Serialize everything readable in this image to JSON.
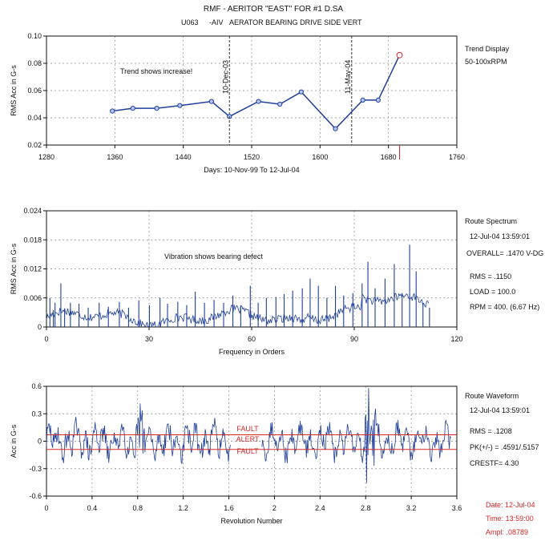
{
  "page": {
    "header_line1": "RMF  - AERITOR \"EAST\" FOR #1 D.SA",
    "header_line2a": "U063",
    "header_line2b": "-AIV",
    "header_line2c": "AERATOR BEARING DRIVE SIDE VERT"
  },
  "chart_data": [
    {
      "type": "line",
      "panel": "trend",
      "ylabel": "RMS Acc in G-s",
      "xlabel": "Days:  10-Nov-99  To  12-Jul-04",
      "xlim": [
        1280,
        1760
      ],
      "ylim": [
        0.02,
        0.1
      ],
      "x_ticks": [
        1280,
        1360,
        1440,
        1520,
        1600,
        1680,
        1760
      ],
      "x_tick_labels": [
        "1280",
        "1360",
        "1440",
        "1520",
        "1600",
        "1680",
        "1760"
      ],
      "y_ticks": [
        0.02,
        0.04,
        0.06,
        0.08,
        0.1
      ],
      "y_tick_labels": [
        "0.02",
        "0.04",
        "0.06",
        "0.08",
        "0.10"
      ],
      "grid": true,
      "series": [
        {
          "x": [
            1357,
            1381,
            1409,
            1436,
            1473,
            1494,
            1528,
            1553,
            1578,
            1618,
            1650,
            1668,
            1693
          ],
          "y": [
            0.045,
            0.047,
            0.047,
            0.049,
            0.052,
            0.041,
            0.052,
            0.05,
            0.059,
            0.032,
            0.053,
            0.053,
            0.086
          ],
          "color": "#1f3f99",
          "marker_fill": "#b7c8ff"
        }
      ],
      "vertical_markers": [
        {
          "x": 1494,
          "label": "10-Dec-03"
        },
        {
          "x": 1637,
          "label": "11-May-04"
        }
      ],
      "annotations": {
        "note": "Trend shows increase!",
        "side_title": "Trend Display",
        "side_sub": "50-100xRPM",
        "point_marker_color": "#d62828"
      }
    },
    {
      "type": "line",
      "panel": "spectrum",
      "ylabel": "RMS Acc in G-s",
      "xlabel": "Frequency in Orders",
      "xlim": [
        0,
        120
      ],
      "ylim": [
        0,
        0.024
      ],
      "x_ticks": [
        0,
        30,
        60,
        90,
        120
      ],
      "x_tick_labels": [
        "0",
        "30",
        "60",
        "90",
        "120"
      ],
      "y_ticks": [
        0,
        0.006,
        0.012,
        0.018,
        0.024
      ],
      "y_tick_labels": [
        "0",
        "0.006",
        "0.012",
        "0.018",
        "0.024"
      ],
      "grid": true,
      "series": [
        {
          "x": [
            1,
            2,
            2.5,
            4.2,
            5.3,
            7,
            9.5,
            12.2,
            15.4,
            18.1,
            21.3,
            24.0,
            27.0,
            30.1,
            33.2,
            35.4,
            38.4,
            41.0,
            43.5,
            46.2,
            49.0,
            51.8,
            54.5,
            56.8,
            59.6,
            61.9,
            64.3,
            67.1,
            69.5,
            72.0,
            74.8,
            77.1,
            79.5,
            82.0,
            84.5,
            86.9,
            89.6,
            92.3,
            94.0,
            96.1,
            99.0,
            101.7,
            104.0,
            106.2,
            108.1,
            110.1,
            112.0
          ],
          "y": [
            0.006,
            0.0035,
            0.005,
            0.009,
            0.0038,
            0.005,
            0.0048,
            0.004,
            0.005,
            0.0042,
            0.0052,
            0.004,
            0.0055,
            0.0045,
            0.006,
            0.0048,
            0.0052,
            0.0045,
            0.0073,
            0.005,
            0.0056,
            0.005,
            0.0065,
            0.0045,
            0.0085,
            0.005,
            0.006,
            0.0062,
            0.0068,
            0.0075,
            0.008,
            0.01,
            0.0085,
            0.006,
            0.0085,
            0.0065,
            0.007,
            0.009,
            0.0135,
            0.008,
            0.01,
            0.013,
            0.007,
            0.017,
            0.0115,
            0.005,
            0.004
          ],
          "color": "#1f3f99"
        }
      ],
      "annotations": {
        "note": "Vibration shows bearing defect",
        "side_title": "Route Spectrum",
        "side_date": "12-Jul-04  13:59:01",
        "side_overall": "OVERALL= .1470 V-DG",
        "side_rms": "RMS =  .1150",
        "side_load": "LOAD = 100.0",
        "side_rpm": "RPM = 400. (6.67 Hz)"
      }
    },
    {
      "type": "line",
      "panel": "waveform",
      "ylabel": "Acc in G-s",
      "xlabel": "Revolution Number",
      "xlim": [
        0,
        3.6
      ],
      "ylim": [
        -0.6,
        0.6
      ],
      "x_ticks": [
        0,
        0.4,
        0.8,
        1.2,
        1.6,
        2.0,
        2.4,
        2.8,
        3.2,
        3.6
      ],
      "x_tick_labels": [
        "0",
        "0.4",
        "0.8",
        "1.2",
        "1.6",
        "2",
        "2.4",
        "2.8",
        "3.2",
        "3.6"
      ],
      "y_ticks": [
        -0.6,
        -0.3,
        0,
        0.3,
        0.6
      ],
      "y_tick_labels": [
        "-0.6",
        "-0.3",
        "0",
        "0.3",
        "0.6"
      ],
      "grid": true,
      "series": [
        {
          "x": [
            0.0,
            0.05,
            0.1,
            0.15,
            0.2,
            0.25,
            0.3,
            0.35,
            0.4,
            0.45,
            0.5,
            0.55,
            0.6,
            0.65,
            0.7,
            0.75,
            0.8,
            0.85,
            0.9,
            0.95,
            1.0,
            1.05,
            1.1,
            1.15,
            1.2,
            1.25,
            1.3,
            1.35,
            1.4,
            1.45,
            1.5,
            1.55,
            1.6,
            1.62,
            1.89,
            1.95,
            2.0,
            2.05,
            2.1,
            2.15,
            2.2,
            2.25,
            2.3,
            2.35,
            2.4,
            2.45,
            2.5,
            2.55,
            2.6,
            2.65,
            2.7,
            2.75,
            2.8,
            2.85,
            2.9,
            2.95,
            3.0,
            3.05,
            3.1,
            3.15,
            3.2,
            3.25,
            3.3,
            3.35,
            3.4,
            3.45,
            3.5,
            3.55
          ],
          "y": [
            0.03,
            -0.12,
            0.1,
            -0.06,
            0.15,
            -0.11,
            0.08,
            -0.14,
            0.11,
            -0.03,
            0.2,
            -0.18,
            0.02,
            -0.09,
            0.12,
            -0.06,
            0.33,
            -0.32,
            0.08,
            -0.16,
            0.24,
            -0.11,
            0.07,
            -0.13,
            0.18,
            -0.1,
            0.09,
            -0.18,
            0.13,
            -0.06,
            0.19,
            -0.14,
            0.05,
            0.0,
            -0.02,
            0.08,
            -0.14,
            0.12,
            -0.09,
            0.14,
            -0.16,
            0.07,
            -0.11,
            0.13,
            -0.08,
            0.15,
            -0.15,
            0.09,
            -0.07,
            0.12,
            -0.12,
            0.08,
            0.42,
            -0.48,
            0.33,
            -0.22,
            0.1,
            -0.18,
            0.14,
            -0.08,
            0.12,
            -0.16,
            0.07,
            -0.06,
            0.13,
            -0.09,
            0.02,
            0.06
          ],
          "color": "#1f3f99"
        }
      ],
      "fault_lines": [
        0.07,
        -0.09
      ],
      "annotations": {
        "fault_top": "FAULT",
        "alert": "ALERT",
        "fault_bottom": "FAULT",
        "side_title": "Route Waveform",
        "side_date": "12-Jul-04  13:59:01",
        "side_rms": "RMS =  .1208",
        "side_pk": "PK(+/-) = .4591/.5157",
        "side_crest": "CRESTF= 4.30"
      }
    }
  ],
  "footer": {
    "date": "Date:  12-Jul-04",
    "time": "Time:  13:59:00",
    "ampl": "Ampl:  .08789"
  },
  "colors": {
    "trace": "#1f3f99",
    "marker_fill": "#b7c8ff",
    "fault": "#d62828",
    "axis": "#111111",
    "grid": "#8a8a8a"
  }
}
